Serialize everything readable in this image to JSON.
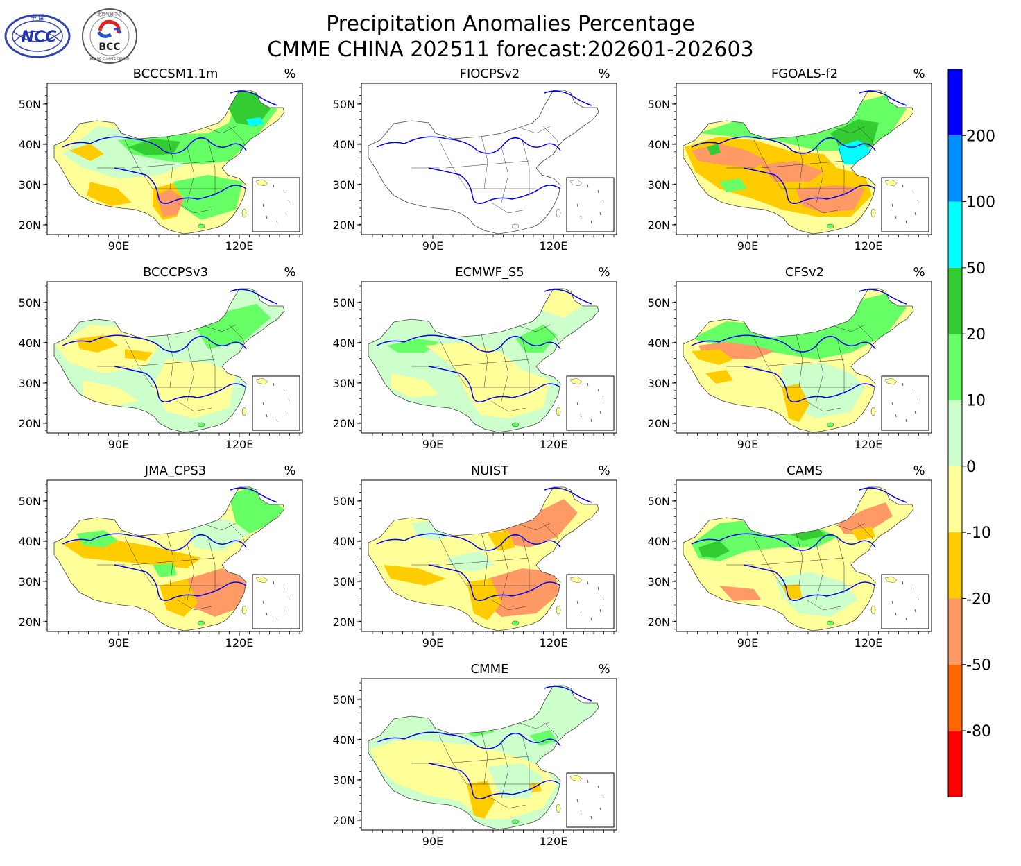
{
  "title": {
    "line1": "Precipitation Anomalies Percentage",
    "line2": "CMME CHINA 202511 forecast:202601-202603"
  },
  "logos": {
    "ncc": {
      "text": "NCC",
      "top_text": "中 国"
    },
    "bcc": {
      "text": "BCC",
      "ring_text": "BEIJING CLIMATE CENTER",
      "top_text": "北京气候中心"
    }
  },
  "axes": {
    "lat_ticks": [
      "50N",
      "40N",
      "30N",
      "20N"
    ],
    "lon_ticks": [
      "90E",
      "120E"
    ]
  },
  "unit_label": "%",
  "panels": [
    {
      "name": "BCCCSM1.1m",
      "pattern": "bcccsm"
    },
    {
      "name": "FIOCPSv2",
      "pattern": "empty"
    },
    {
      "name": "FGOALS-f2",
      "pattern": "fgoals"
    },
    {
      "name": "BCCCPSv3",
      "pattern": "bcccps"
    },
    {
      "name": "ECMWF_S5",
      "pattern": "ecmwf"
    },
    {
      "name": "CFSv2",
      "pattern": "cfsv2"
    },
    {
      "name": "JMA_CPS3",
      "pattern": "jma"
    },
    {
      "name": "NUIST",
      "pattern": "nuist"
    },
    {
      "name": "CAMS",
      "pattern": "cams"
    },
    {
      "name": "CMME",
      "pattern": "cmme"
    }
  ],
  "colorbar": {
    "labels": [
      "200",
      "100",
      "50",
      "20",
      "10",
      "0",
      "-10",
      "-20",
      "-50",
      "-80"
    ],
    "colors": [
      "#0000ff",
      "#0090ff",
      "#00ffff",
      "#33cc33",
      "#66ff66",
      "#ccffcc",
      "#ffff99",
      "#ffcc00",
      "#ff9966",
      "#ff6600",
      "#ff0000"
    ]
  }
}
